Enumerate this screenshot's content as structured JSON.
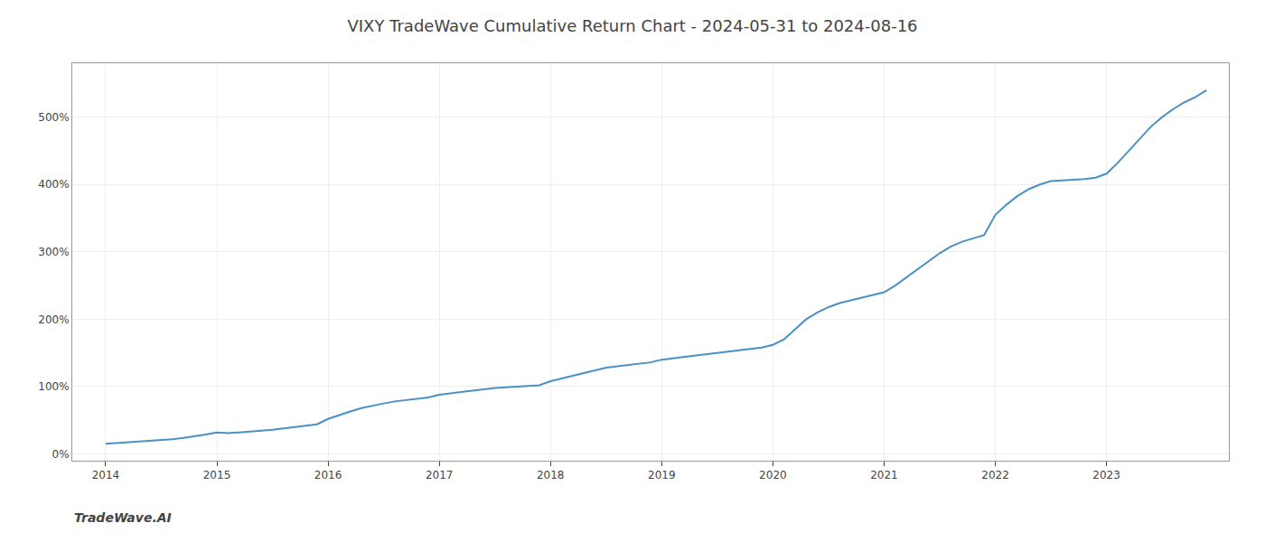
{
  "chart_data": {
    "type": "line",
    "title": "VIXY TradeWave Cumulative Return Chart - 2024-05-31 to 2024-08-16",
    "annotations": [
      {
        "text": "TradeWave.AI"
      }
    ],
    "x": [
      2014.0,
      2014.1,
      2014.2,
      2014.3,
      2014.4,
      2014.5,
      2014.6,
      2014.7,
      2014.8,
      2014.9,
      2015.0,
      2015.1,
      2015.2,
      2015.3,
      2015.4,
      2015.5,
      2015.6,
      2015.7,
      2015.8,
      2015.9,
      2016.0,
      2016.1,
      2016.2,
      2016.3,
      2016.4,
      2016.5,
      2016.6,
      2016.7,
      2016.8,
      2016.9,
      2017.0,
      2017.1,
      2017.2,
      2017.3,
      2017.4,
      2017.5,
      2017.6,
      2017.7,
      2017.8,
      2017.9,
      2018.0,
      2018.1,
      2018.2,
      2018.3,
      2018.4,
      2018.5,
      2018.6,
      2018.7,
      2018.8,
      2018.9,
      2019.0,
      2019.1,
      2019.2,
      2019.3,
      2019.4,
      2019.5,
      2019.6,
      2019.7,
      2019.8,
      2019.9,
      2020.0,
      2020.1,
      2020.2,
      2020.3,
      2020.4,
      2020.5,
      2020.6,
      2020.7,
      2020.8,
      2020.9,
      2021.0,
      2021.1,
      2021.2,
      2021.3,
      2021.4,
      2021.5,
      2021.6,
      2021.7,
      2021.8,
      2021.9,
      2022.0,
      2022.1,
      2022.2,
      2022.3,
      2022.4,
      2022.5,
      2022.6,
      2022.7,
      2022.8,
      2022.9,
      2023.0,
      2023.1,
      2023.2,
      2023.3,
      2023.4,
      2023.5,
      2023.6,
      2023.7,
      2023.8,
      2023.9
    ],
    "values": [
      15,
      16,
      17,
      18,
      19,
      20,
      22,
      24,
      26,
      29,
      32,
      31,
      32,
      33,
      34,
      36,
      38,
      40,
      42,
      44,
      52,
      58,
      63,
      68,
      72,
      75,
      78,
      80,
      82,
      84,
      88,
      90,
      92,
      94,
      96,
      98,
      99,
      100,
      101,
      102,
      108,
      112,
      116,
      120,
      124,
      128,
      130,
      132,
      134,
      136,
      140,
      142,
      144,
      146,
      148,
      150,
      152,
      154,
      156,
      158,
      162,
      170,
      185,
      200,
      210,
      218,
      224,
      228,
      232,
      236,
      240,
      250,
      262,
      274,
      286,
      298,
      308,
      315,
      320,
      325,
      355,
      370,
      383,
      393,
      400,
      405,
      406,
      407,
      408,
      410,
      416,
      432,
      450,
      468,
      486,
      500,
      512,
      522,
      530,
      540
    ],
    "color": "#4a90c4",
    "xlim": [
      2013.7,
      2024.1
    ],
    "xticks": [
      2014,
      2015,
      2016,
      2017,
      2018,
      2019,
      2020,
      2021,
      2022,
      2023
    ],
    "ylim": [
      -10,
      580
    ],
    "yticks": [
      {
        "value": 0,
        "label": "0%"
      },
      {
        "value": 100,
        "label": "100%"
      },
      {
        "value": 200,
        "label": "200%"
      },
      {
        "value": 300,
        "label": "300%"
      },
      {
        "value": 400,
        "label": "400%"
      },
      {
        "value": 500,
        "label": "500%"
      }
    ],
    "grid": true
  }
}
